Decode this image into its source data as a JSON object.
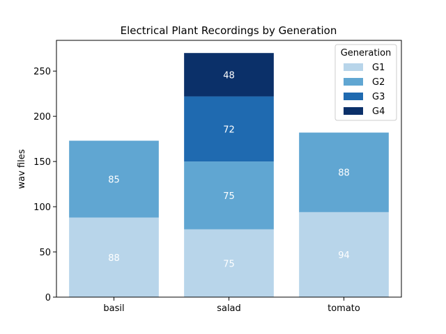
{
  "chart_data": {
    "type": "bar",
    "stacked": true,
    "title": "Electrical Plant Recordings by Generation",
    "xlabel": "",
    "ylabel": "wav files",
    "categories": [
      "basil",
      "salad",
      "tomato"
    ],
    "ylim": [
      0,
      284
    ],
    "yticks": [
      0,
      50,
      100,
      150,
      200,
      250
    ],
    "legend": {
      "title": "Generation",
      "position": "top-right"
    },
    "grid": false,
    "series": [
      {
        "name": "G1",
        "color": "#b8d5ea",
        "values": [
          88,
          75,
          94
        ]
      },
      {
        "name": "G2",
        "color": "#60a6d2",
        "values": [
          85,
          75,
          88
        ]
      },
      {
        "name": "G3",
        "color": "#1f6ab0",
        "values": [
          0,
          72,
          0
        ]
      },
      {
        "name": "G4",
        "color": "#0b3069",
        "values": [
          0,
          48,
          0
        ]
      }
    ]
  }
}
